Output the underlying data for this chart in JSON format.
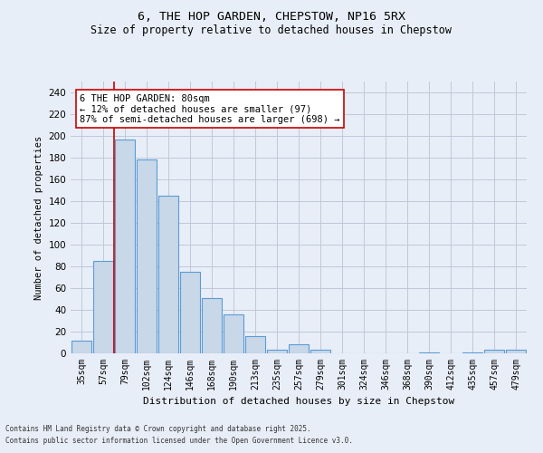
{
  "title1": "6, THE HOP GARDEN, CHEPSTOW, NP16 5RX",
  "title2": "Size of property relative to detached houses in Chepstow",
  "xlabel": "Distribution of detached houses by size in Chepstow",
  "ylabel": "Number of detached properties",
  "categories": [
    "35sqm",
    "57sqm",
    "79sqm",
    "102sqm",
    "124sqm",
    "146sqm",
    "168sqm",
    "190sqm",
    "213sqm",
    "235sqm",
    "257sqm",
    "279sqm",
    "301sqm",
    "324sqm",
    "346sqm",
    "368sqm",
    "390sqm",
    "412sqm",
    "435sqm",
    "457sqm",
    "479sqm"
  ],
  "values": [
    12,
    85,
    197,
    178,
    145,
    75,
    51,
    36,
    16,
    3,
    8,
    3,
    0,
    0,
    0,
    0,
    1,
    0,
    1,
    3,
    3
  ],
  "bar_color": "#c8d8e8",
  "bar_edge_color": "#5b9bd5",
  "grid_color": "#c0c8d8",
  "background_color": "#e8eef8",
  "vline_index": 2,
  "vline_color": "#cc0000",
  "annotation_text": "6 THE HOP GARDEN: 80sqm\n← 12% of detached houses are smaller (97)\n87% of semi-detached houses are larger (698) →",
  "annotation_box_color": "#ffffff",
  "annotation_box_edge": "#cc0000",
  "footer1": "Contains HM Land Registry data © Crown copyright and database right 2025.",
  "footer2": "Contains public sector information licensed under the Open Government Licence v3.0.",
  "ylim": [
    0,
    250
  ],
  "yticks": [
    0,
    20,
    40,
    60,
    80,
    100,
    120,
    140,
    160,
    180,
    200,
    220,
    240
  ]
}
